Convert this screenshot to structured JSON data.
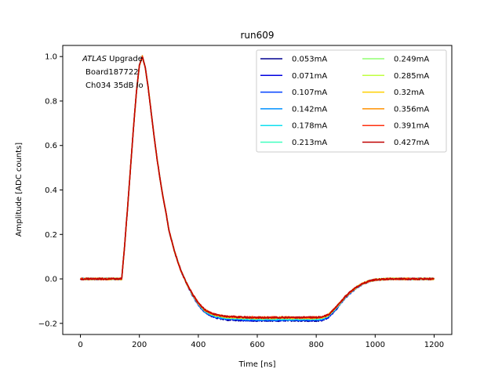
{
  "chart_data": {
    "type": "line",
    "title": "run609",
    "xlabel": "Time [ns]",
    "ylabel": "Amplitude [ADC counts]",
    "xlim": [
      -60,
      1260
    ],
    "ylim": [
      -0.25,
      1.05
    ],
    "xticks": [
      0,
      200,
      400,
      600,
      800,
      1000,
      1200
    ],
    "yticks": [
      -0.2,
      0.0,
      0.2,
      0.4,
      0.6,
      0.8,
      1.0
    ],
    "xtick_labels": [
      "0",
      "200",
      "400",
      "600",
      "800",
      "1000",
      "1200"
    ],
    "ytick_labels": [
      "−0.2",
      "0.0",
      "0.2",
      "0.4",
      "0.6",
      "0.8",
      "1.0"
    ],
    "grid": false,
    "legend_position": "top-right",
    "annotation": {
      "line1_italic": "ATLAS",
      "line1_rest": " Upgrade",
      "line2": "Board187722",
      "line3": "Ch034 35dB lo"
    },
    "pulse_shape": {
      "t": [
        0,
        140,
        150,
        160,
        170,
        180,
        190,
        200,
        210,
        220,
        230,
        240,
        250,
        260,
        270,
        280,
        290,
        300,
        320,
        340,
        360,
        380,
        400,
        420,
        440,
        460,
        480,
        500,
        550,
        600,
        650,
        700,
        750,
        800,
        820,
        840,
        860,
        880,
        900,
        920,
        940,
        960,
        980,
        1000,
        1050,
        1100,
        1150,
        1200
      ],
      "y": [
        0.0,
        0.0,
        0.15,
        0.32,
        0.5,
        0.68,
        0.84,
        0.96,
        1.0,
        0.95,
        0.86,
        0.75,
        0.64,
        0.54,
        0.45,
        0.37,
        0.3,
        0.22,
        0.12,
        0.04,
        -0.02,
        -0.07,
        -0.11,
        -0.14,
        -0.155,
        -0.165,
        -0.17,
        -0.173,
        -0.176,
        -0.177,
        -0.177,
        -0.177,
        -0.177,
        -0.177,
        -0.175,
        -0.165,
        -0.14,
        -0.11,
        -0.08,
        -0.055,
        -0.035,
        -0.02,
        -0.01,
        -0.004,
        0.0,
        0.0,
        0.0,
        0.0
      ]
    },
    "series": [
      {
        "name": "0.053mA",
        "color": "#00008f",
        "undershoot_scale": 1.06
      },
      {
        "name": "0.071mA",
        "color": "#0000e0",
        "undershoot_scale": 1.05
      },
      {
        "name": "0.107mA",
        "color": "#0040ff",
        "undershoot_scale": 1.04
      },
      {
        "name": "0.142mA",
        "color": "#0090ff",
        "undershoot_scale": 1.03
      },
      {
        "name": "0.178mA",
        "color": "#10dfef",
        "undershoot_scale": 1.02
      },
      {
        "name": "0.213mA",
        "color": "#40ffbf",
        "undershoot_scale": 1.01
      },
      {
        "name": "0.249mA",
        "color": "#90ff70",
        "undershoot_scale": 1.0
      },
      {
        "name": "0.285mA",
        "color": "#c0ff40",
        "undershoot_scale": 0.99
      },
      {
        "name": "0.32mA",
        "color": "#ffd000",
        "undershoot_scale": 0.99
      },
      {
        "name": "0.356mA",
        "color": "#ff9000",
        "undershoot_scale": 0.98
      },
      {
        "name": "0.391mA",
        "color": "#ff3010",
        "undershoot_scale": 0.98
      },
      {
        "name": "0.427mA",
        "color": "#c00000",
        "undershoot_scale": 0.98
      }
    ]
  }
}
